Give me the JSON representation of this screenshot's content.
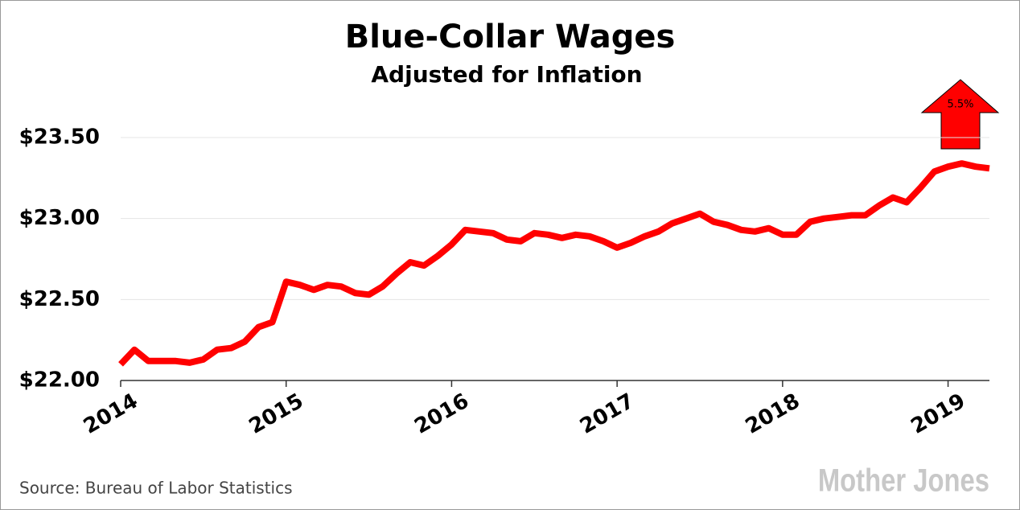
{
  "chart_data": {
    "type": "line",
    "title": "Blue-Collar Wages",
    "subtitle": "Adjusted for Inflation",
    "annotation": "5.5%",
    "source": "Source: Bureau of Labor Statistics",
    "credit": "Mother Jones",
    "color": "#ff0000",
    "x": [
      2014,
      2014.083,
      2014.167,
      2014.25,
      2014.333,
      2014.417,
      2014.5,
      2014.583,
      2014.667,
      2014.75,
      2014.833,
      2014.917,
      2015,
      2015.083,
      2015.167,
      2015.25,
      2015.333,
      2015.417,
      2015.5,
      2015.583,
      2015.667,
      2015.75,
      2015.833,
      2015.917,
      2016,
      2016.083,
      2016.167,
      2016.25,
      2016.333,
      2016.417,
      2016.5,
      2016.583,
      2016.667,
      2016.75,
      2016.833,
      2016.917,
      2017,
      2017.083,
      2017.167,
      2017.25,
      2017.333,
      2017.417,
      2017.5,
      2017.583,
      2017.667,
      2017.75,
      2017.833,
      2017.917,
      2018,
      2018.083,
      2018.167,
      2018.25,
      2018.333,
      2018.417,
      2018.5,
      2018.583,
      2018.667,
      2018.75,
      2018.833,
      2018.917,
      2019,
      2019.083,
      2019.167,
      2019.25
    ],
    "values": [
      22.1,
      22.19,
      22.12,
      22.12,
      22.12,
      22.11,
      22.13,
      22.19,
      22.2,
      22.24,
      22.33,
      22.36,
      22.61,
      22.59,
      22.56,
      22.59,
      22.58,
      22.54,
      22.53,
      22.58,
      22.66,
      22.73,
      22.71,
      22.77,
      22.84,
      22.93,
      22.92,
      22.91,
      22.87,
      22.86,
      22.91,
      22.9,
      22.88,
      22.9,
      22.89,
      22.86,
      22.82,
      22.85,
      22.89,
      22.92,
      22.97,
      23.0,
      23.03,
      22.98,
      22.96,
      22.93,
      22.92,
      22.94,
      22.9,
      22.9,
      22.98,
      23.0,
      23.01,
      23.02,
      23.02,
      23.08,
      23.13,
      23.1,
      23.19,
      23.29,
      23.32,
      23.34,
      23.32,
      23.31
    ],
    "xlim": [
      2014,
      2019.25
    ],
    "xticks": [
      2014,
      2015,
      2016,
      2017,
      2018,
      2019
    ],
    "ylim": [
      22,
      23.5
    ],
    "yticks": [
      {
        "value": 22,
        "label": "$22.00"
      },
      {
        "value": 22.5,
        "label": "$22.50"
      },
      {
        "value": 23,
        "label": "$23.00"
      },
      {
        "value": 23.5,
        "label": "$23.50"
      }
    ],
    "grid": true
  }
}
